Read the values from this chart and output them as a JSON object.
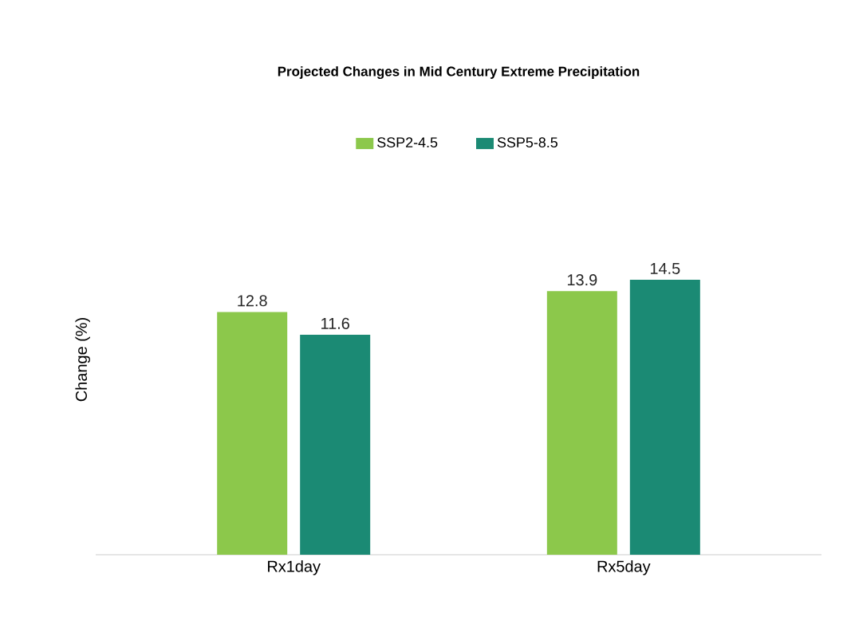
{
  "chart_data": {
    "type": "bar",
    "title": "Projected Changes in Mid Century Extreme Precipitation",
    "ylabel": "Change (%)",
    "categories": [
      "Rx1day",
      "Rx5day"
    ],
    "series": [
      {
        "name": "SSP2-4.5",
        "color": "#8cc84b",
        "values": [
          12.8,
          13.9
        ]
      },
      {
        "name": "SSP5-8.5",
        "color": "#1b8a74",
        "values": [
          11.6,
          14.5
        ]
      }
    ],
    "data_labels": true,
    "legend": "top"
  }
}
